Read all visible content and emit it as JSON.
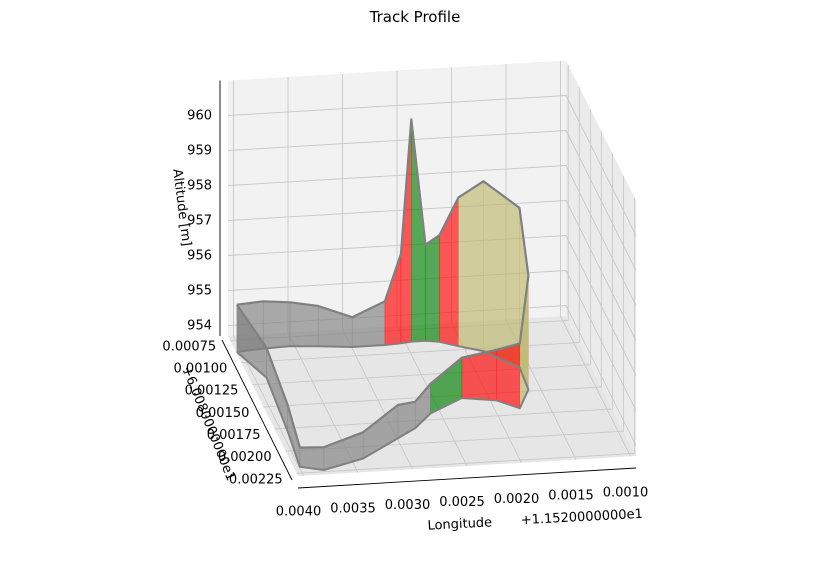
{
  "chart_data": {
    "type": "3d-line-fill",
    "title": "Track Profile",
    "xlabel": "Longitude",
    "xoffset": "+1.1520000000e1",
    "ylabel_offset": "+6.0080000000e1",
    "zlabel": "Altitude [m]",
    "xticks": [
      "0.0040",
      "0.0035",
      "0.0030",
      "0.0025",
      "0.0020",
      "0.0015",
      "0.0010"
    ],
    "yticks": [
      "0.00075",
      "0.00100",
      "0.00125",
      "0.00150",
      "0.00175",
      "0.00200",
      "0.00225"
    ],
    "zticks": [
      "960",
      "959",
      "958",
      "957",
      "956",
      "955",
      "954"
    ],
    "zlim": [
      953.7,
      961.0
    ],
    "grid": true,
    "segment_colors": {
      "flat": "#808080",
      "up": "#ff0000",
      "down": "#008000",
      "end": "#bdb76b"
    },
    "track": [
      {
        "lon": 0.00405,
        "lat": 0.0009,
        "alt": 955.1
      },
      {
        "lon": 0.0038,
        "lat": 0.00088,
        "alt": 955.1
      },
      {
        "lon": 0.00355,
        "lat": 0.00087,
        "alt": 955.0
      },
      {
        "lon": 0.0033,
        "lat": 0.00089,
        "alt": 954.9
      },
      {
        "lon": 0.003,
        "lat": 0.00092,
        "alt": 954.6
      },
      {
        "lon": 0.0027,
        "lat": 0.00092,
        "alt": 955.0
      },
      {
        "lon": 0.00255,
        "lat": 0.00091,
        "alt": 956.3
      },
      {
        "lon": 0.00245,
        "lat": 0.0009,
        "alt": 960.1
      },
      {
        "lon": 0.00232,
        "lat": 0.0009,
        "alt": 956.5
      },
      {
        "lon": 0.0022,
        "lat": 0.00092,
        "alt": 956.8
      },
      {
        "lon": 0.00205,
        "lat": 0.00098,
        "alt": 958.0
      },
      {
        "lon": 0.00185,
        "lat": 0.00105,
        "alt": 958.6
      },
      {
        "lon": 0.0016,
        "lat": 0.00125,
        "alt": 958.3
      },
      {
        "lon": 0.00162,
        "lat": 0.0015,
        "alt": 957.0
      },
      {
        "lon": 0.00178,
        "lat": 0.0017,
        "alt": 955.6
      },
      {
        "lon": 0.00195,
        "lat": 0.0016,
        "alt": 955.2
      },
      {
        "lon": 0.00225,
        "lat": 0.00155,
        "alt": 954.9
      },
      {
        "lon": 0.0026,
        "lat": 0.0017,
        "alt": 954.6
      },
      {
        "lon": 0.0028,
        "lat": 0.00185,
        "alt": 954.5
      },
      {
        "lon": 0.003,
        "lat": 0.00195,
        "alt": 954.7
      },
      {
        "lon": 0.0034,
        "lat": 0.00215,
        "alt": 954.5
      },
      {
        "lon": 0.0038,
        "lat": 0.00225,
        "alt": 954.4
      },
      {
        "lon": 0.004,
        "lat": 0.0022,
        "alt": 954.3
      },
      {
        "lon": 0.00395,
        "lat": 0.0018,
        "alt": 954.5
      },
      {
        "lon": 0.0039,
        "lat": 0.0012,
        "alt": 954.6
      },
      {
        "lon": 0.00405,
        "lat": 0.0009,
        "alt": 955.1
      }
    ]
  }
}
